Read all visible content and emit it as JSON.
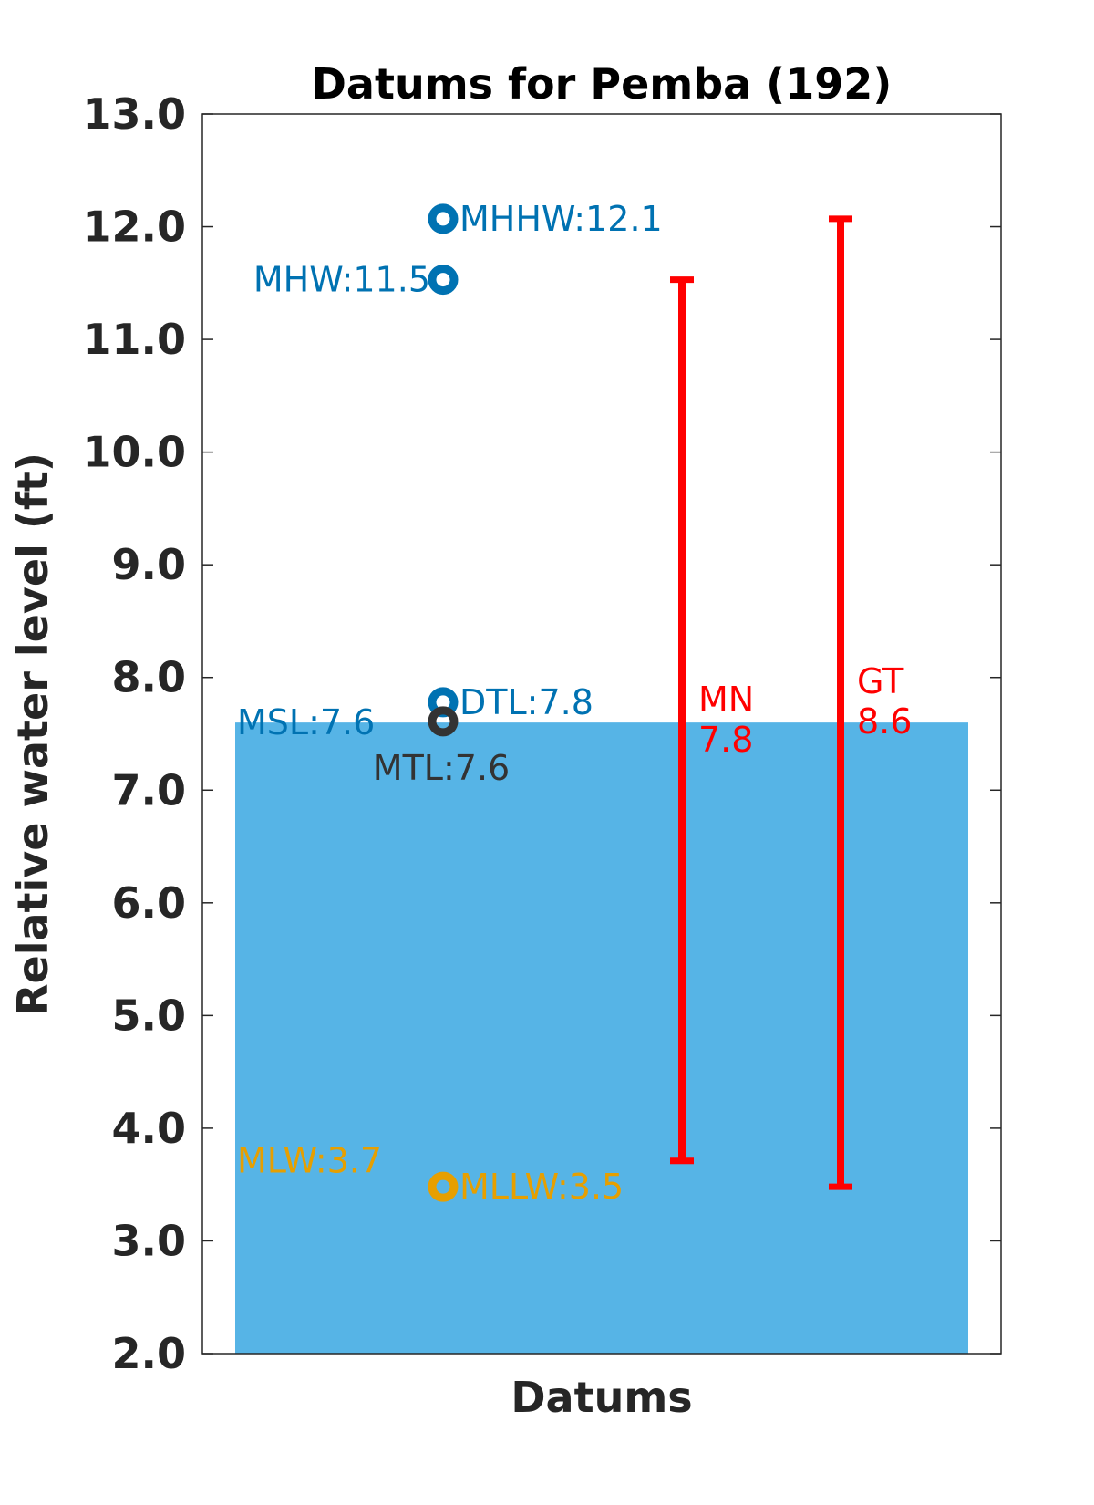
{
  "chart_data": {
    "type": "bar",
    "title": "Datums for Pemba (192)",
    "xlabel": "Datums",
    "ylabel": "Relative water level (ft)",
    "ylim": [
      2.0,
      13.0
    ],
    "yticks": [
      "2.0",
      "3.0",
      "4.0",
      "5.0",
      "6.0",
      "7.0",
      "8.0",
      "9.0",
      "10.0",
      "11.0",
      "12.0",
      "13.0"
    ],
    "yticks_values": [
      2,
      3,
      4,
      5,
      6,
      7,
      8,
      9,
      10,
      11,
      12,
      13
    ],
    "bar": {
      "name": "MSL",
      "value": 7.6,
      "color": "#56B4E6"
    },
    "datums": [
      {
        "label": "MHHW:12.1",
        "value": 12.07,
        "color": "#0072B2",
        "text_side": "right"
      },
      {
        "label": "MHW:11.5",
        "value": 11.53,
        "color": "#0072B2",
        "text_side": "left"
      },
      {
        "label": "DTL:7.8",
        "value": 7.78,
        "color": "#0072B2",
        "text_side": "right"
      },
      {
        "label": "MSL:7.6",
        "value": 7.6,
        "color": "#0072B2",
        "text_side": "left-far"
      },
      {
        "label": "MTL:7.6",
        "value": 7.61,
        "color": "#333333",
        "text_side": "below"
      },
      {
        "label": "MLW:3.7",
        "value": 3.71,
        "color": "#E69F00",
        "text_side": "left-far"
      },
      {
        "label": "MLLW:3.5",
        "value": 3.48,
        "color": "#E69F00",
        "text_side": "right"
      }
    ],
    "ranges": [
      {
        "name": "MN",
        "value_text": "7.8",
        "low": 3.71,
        "high": 11.53,
        "color": "#FF0000"
      },
      {
        "name": "GT",
        "value_text": "8.6",
        "low": 3.48,
        "high": 12.07,
        "color": "#FF0000"
      }
    ],
    "grid": false,
    "legend": "none"
  }
}
